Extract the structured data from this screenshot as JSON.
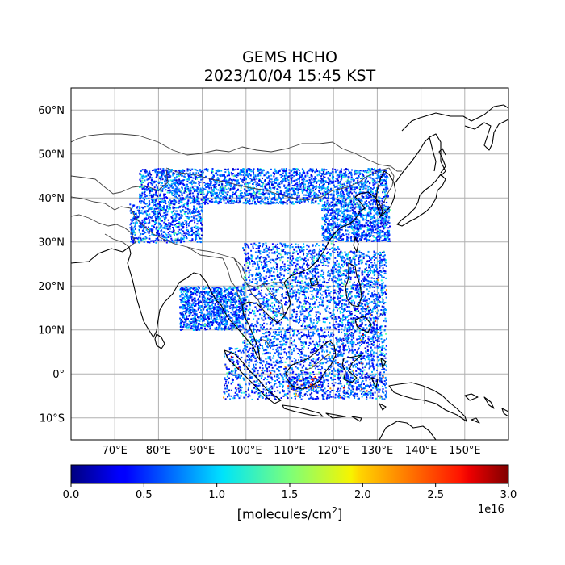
{
  "title": {
    "line1": "GEMS HCHO",
    "line2": "2023/10/04 15:45 KST"
  },
  "map": {
    "lon_range": [
      60,
      160
    ],
    "lat_range": [
      -15,
      65
    ],
    "lon_ticks": [
      70,
      80,
      90,
      100,
      110,
      120,
      130,
      140,
      150
    ],
    "lon_tick_labels": [
      "70°E",
      "80°E",
      "90°E",
      "100°E",
      "110°E",
      "120°E",
      "130°E",
      "140°E",
      "150°E"
    ],
    "lat_ticks": [
      60,
      50,
      40,
      30,
      20,
      10,
      0,
      -10
    ],
    "lat_tick_labels": [
      "60°N",
      "50°N",
      "40°N",
      "30°N",
      "20°N",
      "10°N",
      "0°",
      "10°S"
    ],
    "grid": true,
    "colors": {
      "coastline": "#000000",
      "borders": "#404040",
      "grid": "#b0b0b0"
    }
  },
  "colorbar": {
    "colormap": "jet",
    "range": [
      0.0,
      3.0
    ],
    "tick_values": [
      0.0,
      0.5,
      1.0,
      1.5,
      2.0,
      2.5,
      3.0
    ],
    "tick_labels": [
      "0.0",
      "0.5",
      "1.0",
      "1.5",
      "2.0",
      "2.5",
      "3.0"
    ],
    "label_main": "[molecules/cm",
    "label_sup": "2",
    "label_end": "]",
    "exponent": "1e16"
  }
}
